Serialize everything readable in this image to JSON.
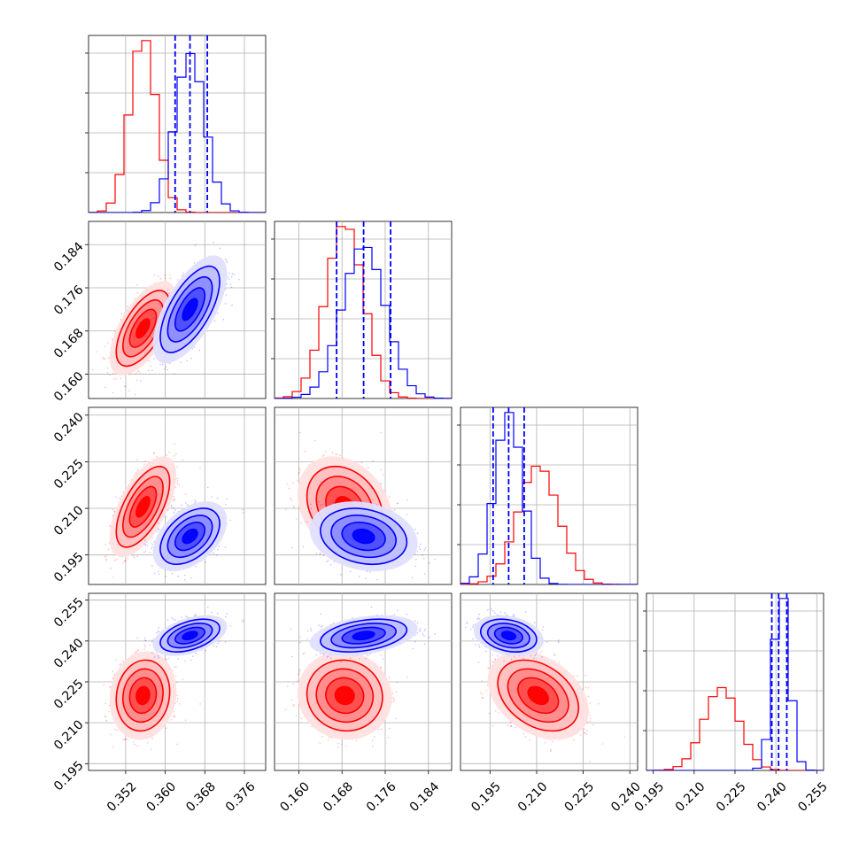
{
  "colors": {
    "red": "#ff0000",
    "blue": "#0000ff",
    "grid": "#b0b0b0"
  },
  "chart_data": {
    "type": "corner",
    "grid": true,
    "parameters": [
      {
        "ticks": [
          "0.352",
          "0.360",
          "0.368",
          "0.376"
        ],
        "tick_values": [
          0.352,
          0.36,
          0.368,
          0.376
        ],
        "range": [
          0.3445,
          0.3803
        ]
      },
      {
        "ticks": [
          "0.160",
          "0.168",
          "0.176",
          "0.184"
        ],
        "tick_values": [
          0.16,
          0.168,
          0.176,
          0.184
        ],
        "range": [
          0.1555,
          0.1883
        ]
      },
      {
        "ticks": [
          "0.195",
          "0.210",
          "0.225",
          "0.240"
        ],
        "tick_values": [
          0.195,
          0.21,
          0.225,
          0.24
        ],
        "range": [
          0.1855,
          0.2425
        ]
      },
      {
        "ticks": [
          "0.195",
          "0.210",
          "0.225",
          "0.240",
          "0.255"
        ],
        "tick_values": [
          0.195,
          0.21,
          0.225,
          0.24,
          0.255
        ],
        "range": [
          0.1925,
          0.2575
        ]
      }
    ],
    "series": [
      {
        "color": "#ff0000",
        "mean": [
          0.3555,
          0.1685,
          0.2105,
          0.22
        ],
        "sigma": [
          0.0027,
          0.0035,
          0.0065,
          0.0065
        ],
        "correlation": {
          "0-1": 0.62,
          "0-2": 0.62,
          "0-3": 0.1,
          "1-2": -0.25,
          "1-3": -0.05,
          "2-3": -0.35
        }
      },
      {
        "color": "#0000ff",
        "mean": [
          0.365,
          0.172,
          0.201,
          0.242
        ],
        "sigma": [
          0.003,
          0.004,
          0.0045,
          0.003
        ],
        "correlation": {
          "0-1": 0.65,
          "0-2": 0.45,
          "0-3": 0.45,
          "1-2": -0.2,
          "1-3": 0.35,
          "2-3": -0.25
        },
        "quantiles": [
          [
            0.362,
            0.365,
            0.3685
          ],
          [
            0.167,
            0.172,
            0.177
          ],
          [
            0.196,
            0.201,
            0.206
          ],
          [
            0.2385,
            0.241,
            0.244
          ]
        ]
      }
    ]
  }
}
